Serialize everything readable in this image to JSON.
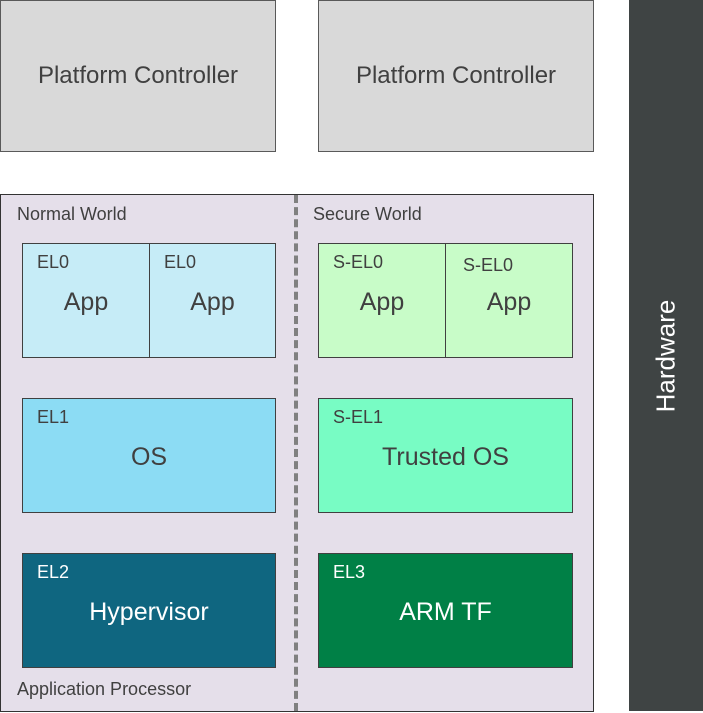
{
  "platform_controllers": [
    "Platform Controller",
    "Platform Controller"
  ],
  "hardware": "Hardware",
  "application_processor": {
    "label": "Application Processor",
    "normal_world": {
      "label": "Normal World",
      "el0": [
        {
          "level": "EL0",
          "name": "App"
        },
        {
          "level": "EL0",
          "name": "App"
        }
      ],
      "el1": {
        "level": "EL1",
        "name": "OS"
      },
      "el2": {
        "level": "EL2",
        "name": "Hypervisor"
      }
    },
    "secure_world": {
      "label": "Secure World",
      "sel0": [
        {
          "level": "S-EL0",
          "name": "App"
        },
        {
          "level": "S-EL0",
          "name": "App"
        }
      ],
      "sel1": {
        "level": "S-EL1",
        "name": "Trusted OS"
      },
      "el3": {
        "level": "EL3",
        "name": "ARM TF"
      }
    }
  },
  "colors": {
    "el0": "#c6ecf7",
    "el1": "#8cdcf4",
    "el2": "#0f6680",
    "sel0": "#c8fcc8",
    "sel1": "#78fcc4",
    "el3": "#008046",
    "hardware": "#3f4444",
    "ap_bg": "#e5dfea",
    "controller": "#d9d9d9"
  }
}
